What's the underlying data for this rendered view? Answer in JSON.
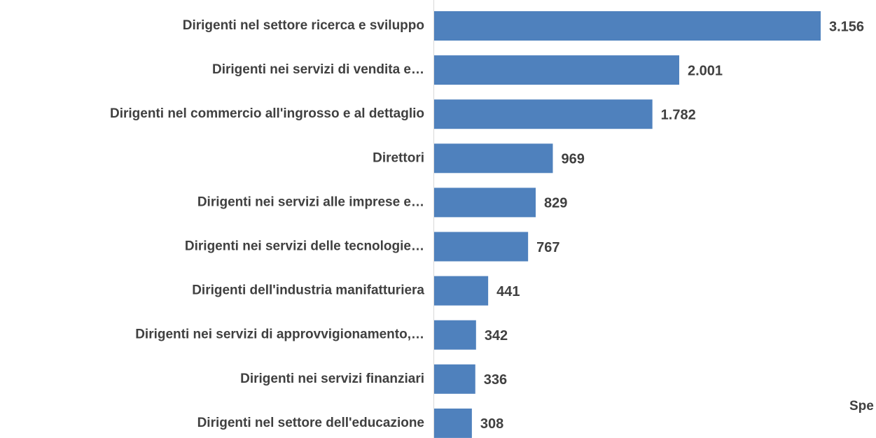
{
  "chart_data": {
    "type": "barh",
    "categories": [
      "Dirigenti nel settore ricerca e sviluppo",
      "Dirigenti nei servizi di vendita e…",
      "Dirigenti nel commercio all'ingrosso e al dettaglio",
      "Direttori",
      "Dirigenti nei servizi alle imprese e…",
      "Dirigenti nei servizi delle tecnologie…",
      "Dirigenti dell'industria manifatturiera",
      "Dirigenti nei servizi di approvvigionamento,…",
      "Dirigenti nei servizi finanziari",
      "Dirigenti nel settore dell'educazione"
    ],
    "values": [
      3156,
      2001,
      1782,
      969,
      829,
      767,
      441,
      342,
      336,
      308
    ],
    "value_labels": [
      "3.156",
      "2.001",
      "1.782",
      "969",
      "829",
      "767",
      "441",
      "342",
      "336",
      "308"
    ],
    "color": "#4f81bd",
    "annotation": "Spe"
  }
}
